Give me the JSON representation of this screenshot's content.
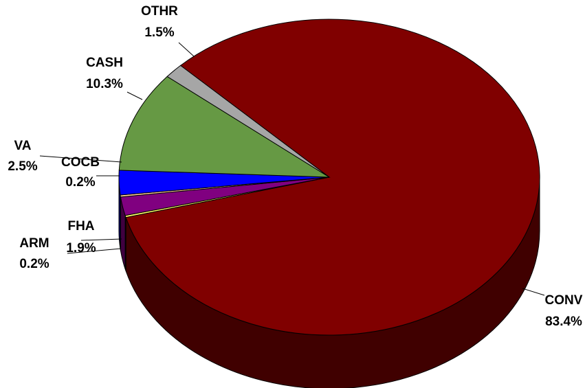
{
  "chart_data": {
    "type": "pie",
    "title": "",
    "style": "3d",
    "slices": [
      {
        "name": "CONV",
        "pct_label": "83.4%",
        "value": 83.4,
        "color": "#800000",
        "side": "#400000"
      },
      {
        "name": "ARM",
        "pct_label": "0.2%",
        "value": 0.2,
        "color": "#ffff66",
        "side": "#7f7f33"
      },
      {
        "name": "FHA",
        "pct_label": "1.9%",
        "value": 1.9,
        "color": "#800080",
        "side": "#400040"
      },
      {
        "name": "COCB",
        "pct_label": "0.2%",
        "value": 0.2,
        "color": "#ffcc99",
        "side": "#806650"
      },
      {
        "name": "VA",
        "pct_label": "2.5%",
        "value": 2.5,
        "color": "#0000ff",
        "side": "#000080"
      },
      {
        "name": "CASH",
        "pct_label": "10.3%",
        "value": 10.3,
        "color": "#669944",
        "side": "#334d22"
      },
      {
        "name": "OTHR",
        "pct_label": "1.5%",
        "value": 1.5,
        "color": "#a6a6a6",
        "side": "#535353"
      }
    ]
  }
}
